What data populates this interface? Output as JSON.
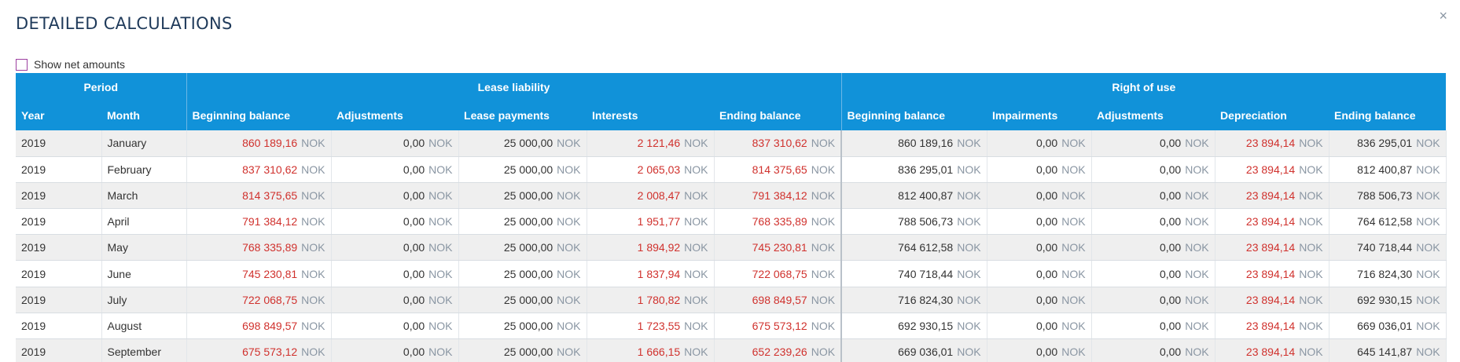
{
  "title": "DETAILED CALCULATIONS",
  "close_glyph": "×",
  "net_amounts_label": "Show net amounts",
  "groups": {
    "period": "Period",
    "lease_liability": "Lease liability",
    "right_of_use": "Right of use"
  },
  "columns": {
    "year": "Year",
    "month": "Month",
    "ll_begin": "Beginning balance",
    "ll_adj": "Adjustments",
    "ll_payments": "Lease payments",
    "ll_interests": "Interests",
    "ll_end": "Ending balance",
    "rou_begin": "Beginning balance",
    "rou_impair": "Impairments",
    "rou_adj": "Adjustments",
    "rou_depr": "Depreciation",
    "rou_end": "Ending balance"
  },
  "currency": "NOK",
  "colors": {
    "header_bg": "#1192d9",
    "negative_red": "#d0312d",
    "title": "#1f3a5a"
  },
  "rows": [
    {
      "year": "2019",
      "month": "January",
      "ll_begin": "860 189,16",
      "ll_adj": "0,00",
      "ll_payments": "25 000,00",
      "ll_interests": "2 121,46",
      "ll_end": "837 310,62",
      "rou_begin": "860 189,16",
      "rou_impair": "0,00",
      "rou_adj": "0,00",
      "rou_depr": "23 894,14",
      "rou_end": "836 295,01"
    },
    {
      "year": "2019",
      "month": "February",
      "ll_begin": "837 310,62",
      "ll_adj": "0,00",
      "ll_payments": "25 000,00",
      "ll_interests": "2 065,03",
      "ll_end": "814 375,65",
      "rou_begin": "836 295,01",
      "rou_impair": "0,00",
      "rou_adj": "0,00",
      "rou_depr": "23 894,14",
      "rou_end": "812 400,87"
    },
    {
      "year": "2019",
      "month": "March",
      "ll_begin": "814 375,65",
      "ll_adj": "0,00",
      "ll_payments": "25 000,00",
      "ll_interests": "2 008,47",
      "ll_end": "791 384,12",
      "rou_begin": "812 400,87",
      "rou_impair": "0,00",
      "rou_adj": "0,00",
      "rou_depr": "23 894,14",
      "rou_end": "788 506,73"
    },
    {
      "year": "2019",
      "month": "April",
      "ll_begin": "791 384,12",
      "ll_adj": "0,00",
      "ll_payments": "25 000,00",
      "ll_interests": "1 951,77",
      "ll_end": "768 335,89",
      "rou_begin": "788 506,73",
      "rou_impair": "0,00",
      "rou_adj": "0,00",
      "rou_depr": "23 894,14",
      "rou_end": "764 612,58"
    },
    {
      "year": "2019",
      "month": "May",
      "ll_begin": "768 335,89",
      "ll_adj": "0,00",
      "ll_payments": "25 000,00",
      "ll_interests": "1 894,92",
      "ll_end": "745 230,81",
      "rou_begin": "764 612,58",
      "rou_impair": "0,00",
      "rou_adj": "0,00",
      "rou_depr": "23 894,14",
      "rou_end": "740 718,44"
    },
    {
      "year": "2019",
      "month": "June",
      "ll_begin": "745 230,81",
      "ll_adj": "0,00",
      "ll_payments": "25 000,00",
      "ll_interests": "1 837,94",
      "ll_end": "722 068,75",
      "rou_begin": "740 718,44",
      "rou_impair": "0,00",
      "rou_adj": "0,00",
      "rou_depr": "23 894,14",
      "rou_end": "716 824,30"
    },
    {
      "year": "2019",
      "month": "July",
      "ll_begin": "722 068,75",
      "ll_adj": "0,00",
      "ll_payments": "25 000,00",
      "ll_interests": "1 780,82",
      "ll_end": "698 849,57",
      "rou_begin": "716 824,30",
      "rou_impair": "0,00",
      "rou_adj": "0,00",
      "rou_depr": "23 894,14",
      "rou_end": "692 930,15"
    },
    {
      "year": "2019",
      "month": "August",
      "ll_begin": "698 849,57",
      "ll_adj": "0,00",
      "ll_payments": "25 000,00",
      "ll_interests": "1 723,55",
      "ll_end": "675 573,12",
      "rou_begin": "692 930,15",
      "rou_impair": "0,00",
      "rou_adj": "0,00",
      "rou_depr": "23 894,14",
      "rou_end": "669 036,01"
    },
    {
      "year": "2019",
      "month": "September",
      "ll_begin": "675 573,12",
      "ll_adj": "0,00",
      "ll_payments": "25 000,00",
      "ll_interests": "1 666,15",
      "ll_end": "652 239,26",
      "rou_begin": "669 036,01",
      "rou_impair": "0,00",
      "rou_adj": "0,00",
      "rou_depr": "23 894,14",
      "rou_end": "645 141,87"
    }
  ]
}
